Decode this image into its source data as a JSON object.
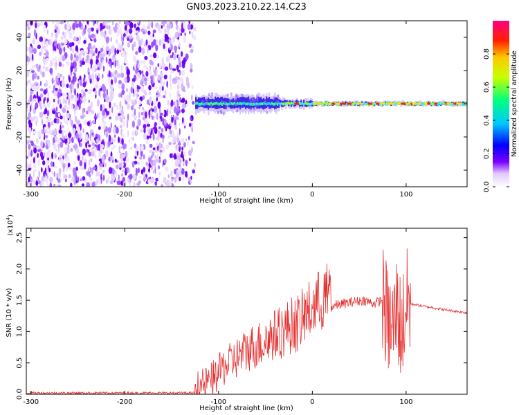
{
  "title": "GN03.2023.210.22.14.C23",
  "chart_data": [
    {
      "type": "heatmap",
      "xlabel": "Height of straight line (km)",
      "ylabel": "Frequency (Hz)",
      "xlim": [
        -305,
        165
      ],
      "ylim": [
        -50,
        50
      ],
      "xticks": [
        -300,
        -200,
        -100,
        0,
        100
      ],
      "yticks": [
        -40,
        -20,
        0,
        20,
        40
      ],
      "noise_region_x": [
        -305,
        -125
      ],
      "signal_center_hz": 0,
      "colorbar": {
        "label": "Normalized spectral amplitude",
        "range": [
          0.0,
          1.0
        ],
        "ticks": [
          0.0,
          0.2,
          0.4,
          0.6,
          0.8
        ],
        "colormap": [
          "#ffffff",
          "#e0c8ff",
          "#7b00ff",
          "#0000ff",
          "#00c8ff",
          "#00ff80",
          "#ffff00",
          "#ff8000",
          "#ff0000",
          "#ff0080"
        ]
      }
    },
    {
      "type": "line",
      "xlabel": "Height of straight line (km)",
      "ylabel": "SNR (10 * v/v)",
      "y_multiplier": "(x10",
      "y_multiplier_exp": "4",
      "xlim": [
        -305,
        165
      ],
      "ylim": [
        0,
        2.65
      ],
      "xticks": [
        -300,
        -200,
        -100,
        0,
        100
      ],
      "yticks": [
        0.0,
        0.5,
        1.0,
        1.5,
        2.0,
        2.5
      ],
      "ytick_labels": [
        "0.0",
        "0.5",
        "1.0",
        "1.5",
        "2.0",
        "2.5"
      ],
      "color": "#e53030",
      "series": [
        {
          "x": [
            -305,
            -150,
            -125,
            -115,
            -105,
            -95,
            -85,
            -75,
            -65,
            -55,
            -45,
            -35,
            -25,
            -15,
            -5,
            5,
            15,
            25,
            35,
            45,
            55,
            65,
            75,
            80,
            85,
            90,
            95,
            100,
            110,
            120,
            130,
            140,
            150,
            165
          ],
          "values": [
            0.02,
            0.02,
            0.02,
            0.05,
            0.15,
            0.3,
            0.4,
            0.5,
            0.6,
            0.65,
            0.75,
            0.8,
            0.9,
            0.95,
            1.1,
            1.25,
            1.35,
            1.42,
            1.45,
            1.48,
            1.5,
            1.45,
            1.5,
            1.2,
            1.0,
            1.4,
            1.0,
            1.45,
            1.43,
            1.4,
            1.38,
            1.35,
            1.33,
            1.3
          ]
        }
      ]
    }
  ]
}
